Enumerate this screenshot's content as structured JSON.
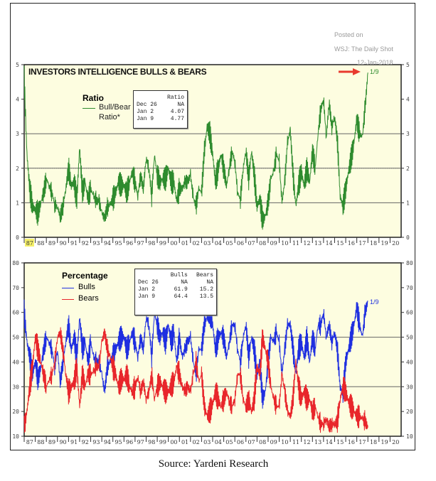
{
  "annotation": {
    "posted": "Posted on",
    "source_outlet": "WSJ: The Daily Shot",
    "date": "12-Jan-2018"
  },
  "source": "Source: Yardeni Research",
  "colors": {
    "ratio": "#2e8b2e",
    "bulls": "#1f2fe0",
    "bears": "#e8262b",
    "plot_bg": "#fdfde0",
    "arrow": "#e83a2e",
    "highlight": "#f5f06a"
  },
  "chart_data": [
    {
      "type": "line",
      "title": "INVESTORS INTELLIGENCE BULLS & BEARS",
      "legend_title": "Ratio",
      "legend_placement": "top-left",
      "ylim": [
        0,
        5
      ],
      "yticks": [
        0,
        1,
        2,
        3,
        4,
        5
      ],
      "gridlines": [
        1,
        2,
        3
      ],
      "xtick_labels": [
        "87",
        "88",
        "89",
        "90",
        "91",
        "92",
        "93",
        "94",
        "95",
        "96",
        "97",
        "98",
        "99",
        "00",
        "01",
        "02",
        "03",
        "04",
        "05",
        "06",
        "07",
        "08",
        "09",
        "10",
        "11",
        "12",
        "13",
        "14",
        "15",
        "16",
        "17",
        "18",
        "19",
        "20"
      ],
      "highlighted_tick": "87",
      "end_label": "1/9",
      "series": [
        {
          "name": "Bull/Bear Ratio*",
          "color": "#2e8b2e",
          "x_start": 1987.0,
          "x_step": 0.25,
          "values": [
            4.6,
            2.4,
            1.4,
            0.9,
            0.8,
            0.7,
            1.0,
            1.3,
            1.7,
            1.5,
            1.3,
            0.95,
            0.9,
            0.6,
            0.9,
            1.4,
            2.0,
            1.5,
            1.6,
            1.1,
            2.6,
            1.3,
            1.6,
            1.1,
            1.4,
            1.2,
            1.05,
            1.05,
            0.7,
            0.55,
            0.85,
            0.95,
            1.1,
            1.3,
            1.6,
            1.5,
            1.5,
            1.3,
            1.6,
            1.9,
            1.6,
            1.2,
            1.8,
            1.4,
            2.3,
            2.0,
            1.2,
            2.4,
            1.8,
            1.6,
            1.7,
            1.7,
            2.0,
            1.6,
            1.6,
            1.05,
            1.4,
            1.4,
            1.6,
            1.6,
            1.8,
            1.15,
            0.9,
            1.4,
            1.3,
            2.5,
            3.2,
            3.0,
            2.4,
            1.6,
            2.0,
            2.4,
            2.0,
            1.5,
            2.0,
            2.5,
            2.2,
            1.3,
            1.1,
            2.0,
            2.5,
            1.7,
            2.5,
            1.8,
            0.9,
            1.1,
            0.5,
            0.6,
            1.0,
            1.7,
            1.9,
            2.4,
            2.2,
            1.0,
            1.6,
            2.75,
            3.1,
            1.8,
            0.9,
            1.5,
            1.9,
            1.5,
            2.0,
            1.6,
            2.5,
            2.0,
            3.0,
            3.7,
            4.0,
            2.9,
            3.9,
            3.2,
            3.5,
            2.8,
            1.2,
            0.9,
            1.4,
            1.9,
            2.3,
            2.75,
            3.4,
            3.0,
            2.9,
            3.75,
            4.77
          ]
        }
      ],
      "table": {
        "header": [
          "",
          "Ratio"
        ],
        "rows": [
          [
            "Dec 26",
            "NA"
          ],
          [
            "Jan  2",
            "4.07"
          ],
          [
            "Jan  9",
            "4.77"
          ]
        ]
      }
    },
    {
      "type": "line",
      "legend_title": "Percentage",
      "legend_placement": "top-left",
      "ylim": [
        10,
        80
      ],
      "yticks": [
        10,
        20,
        30,
        40,
        50,
        60,
        70,
        80
      ],
      "gridlines": [
        30,
        50
      ],
      "xtick_labels": [
        "87",
        "88",
        "89",
        "90",
        "91",
        "92",
        "93",
        "94",
        "95",
        "96",
        "97",
        "98",
        "99",
        "00",
        "01",
        "02",
        "03",
        "04",
        "05",
        "06",
        "07",
        "08",
        "09",
        "10",
        "11",
        "12",
        "13",
        "14",
        "15",
        "16",
        "17",
        "18",
        "19",
        "20"
      ],
      "end_label": "1/9",
      "series": [
        {
          "name": "Bulls",
          "color": "#1f2fe0",
          "x_start": 1987.0,
          "x_step": 0.25,
          "values": [
            60,
            48,
            42,
            35,
            40,
            33,
            38,
            45,
            50,
            48,
            45,
            38,
            45,
            32,
            40,
            48,
            55,
            45,
            50,
            42,
            58,
            45,
            48,
            40,
            48,
            42,
            40,
            40,
            35,
            28,
            38,
            40,
            42,
            45,
            48,
            50,
            50,
            45,
            48,
            52,
            48,
            42,
            50,
            45,
            58,
            55,
            42,
            60,
            55,
            50,
            52,
            48,
            55,
            48,
            52,
            40,
            50,
            42,
            45,
            48,
            50,
            40,
            35,
            45,
            45,
            55,
            58,
            60,
            55,
            45,
            50,
            52,
            50,
            42,
            48,
            55,
            55,
            45,
            40,
            50,
            55,
            42,
            50,
            45,
            35,
            40,
            25,
            28,
            40,
            50,
            48,
            52,
            48,
            35,
            45,
            55,
            55,
            45,
            35,
            45,
            48,
            42,
            50,
            40,
            50,
            45,
            55,
            55,
            60,
            50,
            55,
            48,
            52,
            45,
            30,
            27,
            40,
            45,
            50,
            55,
            62,
            55,
            50,
            60,
            64.4
          ]
        },
        {
          "name": "Bears",
          "color": "#e8262b",
          "x_start": 1987.0,
          "x_step": 0.25,
          "values": [
            13,
            20,
            30,
            38,
            50,
            45,
            40,
            35,
            30,
            33,
            35,
            40,
            50,
            52,
            45,
            35,
            28,
            30,
            32,
            38,
            22,
            35,
            30,
            35,
            35,
            36,
            38,
            38,
            48,
            52,
            45,
            42,
            38,
            35,
            30,
            33,
            33,
            35,
            30,
            28,
            30,
            34,
            28,
            32,
            25,
            28,
            35,
            25,
            30,
            32,
            30,
            28,
            28,
            30,
            32,
            38,
            35,
            30,
            28,
            30,
            28,
            35,
            40,
            32,
            35,
            22,
            18,
            20,
            23,
            28,
            25,
            22,
            25,
            28,
            24,
            22,
            25,
            35,
            35,
            25,
            22,
            25,
            20,
            25,
            38,
            35,
            50,
            45,
            40,
            30,
            25,
            22,
            22,
            35,
            28,
            20,
            18,
            25,
            40,
            30,
            25,
            28,
            25,
            25,
            20,
            22,
            18,
            15,
            15,
            17,
            14,
            15,
            15,
            16,
            25,
            30,
            28,
            24,
            22,
            20,
            18,
            18,
            17,
            16,
            13.5
          ]
        }
      ],
      "table": {
        "header": [
          "",
          "Bulls",
          "Bears"
        ],
        "rows": [
          [
            "Dec 26",
            "NA",
            "NA"
          ],
          [
            "Jan  2",
            "61.9",
            "15.2"
          ],
          [
            "Jan  9",
            "64.4",
            "13.5"
          ]
        ]
      }
    }
  ]
}
